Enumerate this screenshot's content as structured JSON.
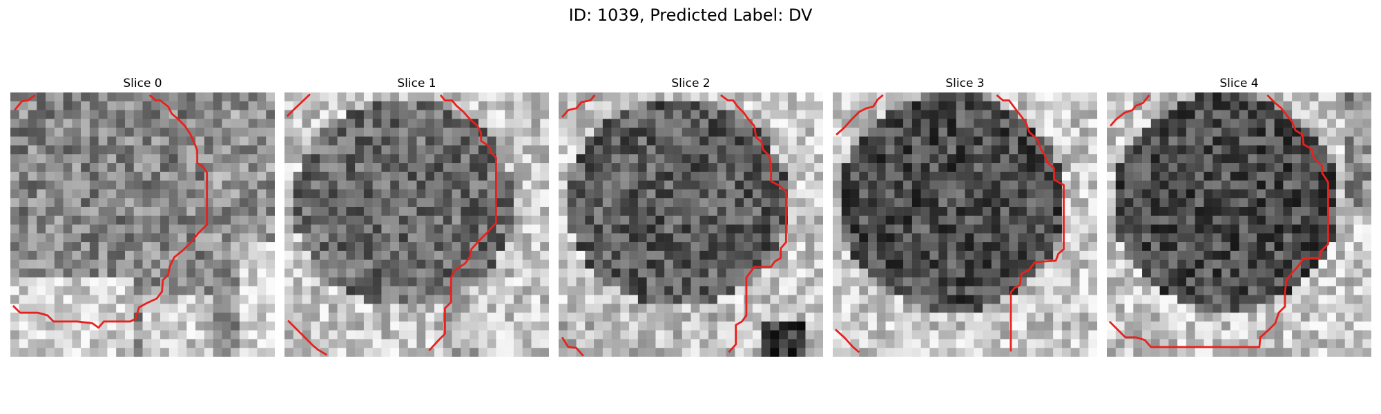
{
  "figure": {
    "suptitle": "ID: 1039, Predicted Label: DV",
    "contour_color": "#e8211c",
    "slices": [
      {
        "title": "Slice 0",
        "seed": 11,
        "pattern": "s0"
      },
      {
        "title": "Slice 1",
        "seed": 23,
        "pattern": "s1"
      },
      {
        "title": "Slice 2",
        "seed": 37,
        "pattern": "s2"
      },
      {
        "title": "Slice 3",
        "seed": 51,
        "pattern": "s3"
      },
      {
        "title": "Slice 4",
        "seed": 67,
        "pattern": "s4"
      }
    ]
  }
}
